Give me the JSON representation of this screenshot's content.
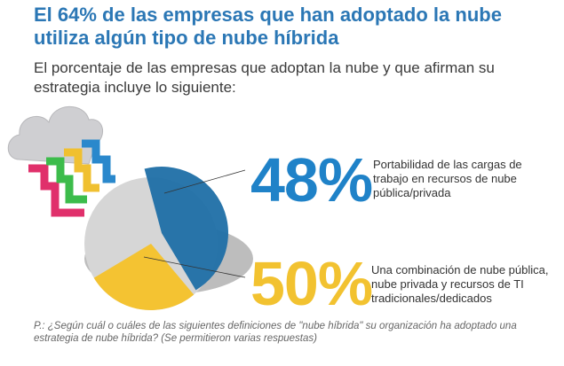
{
  "header": {
    "title": "El 64% de las empresas que han adoptado la nube utiliza algún tipo de nube híbrida",
    "subtitle": "El porcentaje de las empresas que adoptan la nube y que afirman su estrategia incluye lo siguiente:"
  },
  "chart_data": {
    "type": "pie",
    "categories": [
      "Portabilidad de las cargas de trabajo en recursos de nube pública/privada",
      "Una combinación de nube pública, nube privada y recursos de TI tradicionales/dedicados"
    ],
    "values": [
      48,
      50
    ],
    "value_labels": [
      "48%",
      "50%"
    ],
    "colors": [
      "#1f6fa6",
      "#f4c332"
    ],
    "background_color": "#d6d6d6",
    "note": "multiple responses allowed; slices overlap"
  },
  "stats": [
    {
      "value": "48%",
      "label": "Portabilidad de las cargas de trabajo en recursos de nube pública/privada",
      "color": "#1f82c8"
    },
    {
      "value": "50%",
      "label": "Una combinación de nube pública, nube privada y recursos de TI tradicionales/dedicados",
      "color": "#f2c230"
    }
  ],
  "footnote": "P.: ¿Según cuál o cuáles de las siguientes definiciones de \"nube híbrida\" su organización ha adoptado una estrategia de nube híbrida? (Se permitieron varias respuestas)"
}
